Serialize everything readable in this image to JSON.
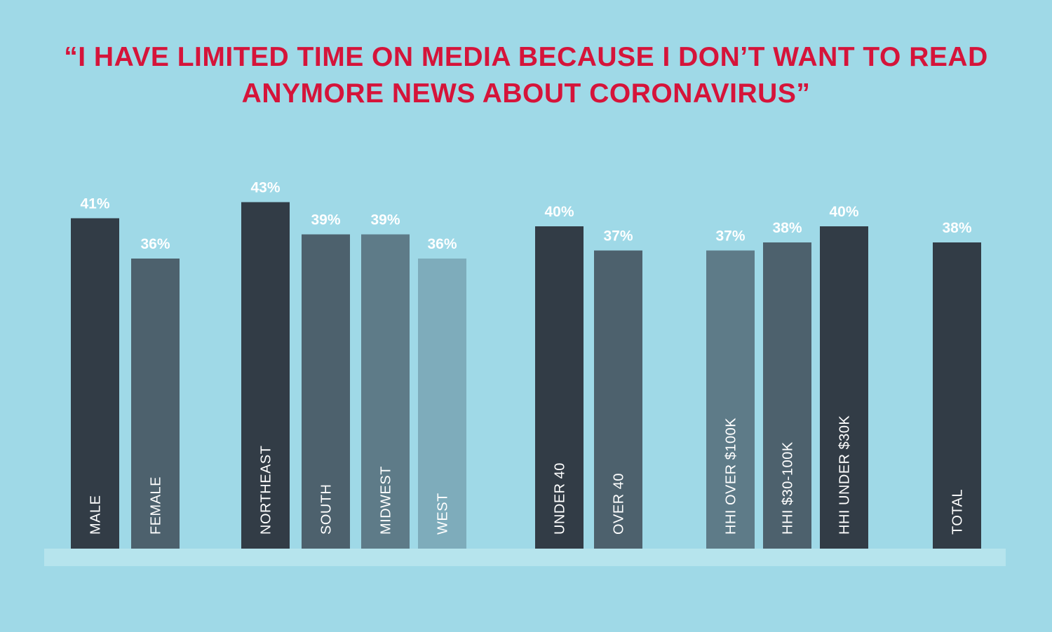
{
  "chart_data": {
    "type": "bar",
    "title": "“I HAVE LIMITED TIME ON MEDIA BECAUSE I DON’T WANT TO READ ANYMORE NEWS ABOUT CORONAVIRUS”",
    "value_suffix": "%",
    "ylim": [
      0,
      50
    ],
    "grid": false,
    "legend": "none",
    "bars": [
      {
        "category": "MALE",
        "value": 41,
        "value_label": "41%",
        "color": "#323c46"
      },
      {
        "category": "FEMALE",
        "value": 36,
        "value_label": "36%",
        "color": "#4d616d"
      },
      {
        "category": "NORTHEAST",
        "value": 43,
        "value_label": "43%",
        "color": "#323c46"
      },
      {
        "category": "SOUTH",
        "value": 39,
        "value_label": "39%",
        "color": "#4d616d"
      },
      {
        "category": "MIDWEST",
        "value": 39,
        "value_label": "39%",
        "color": "#5e7b88"
      },
      {
        "category": "WEST",
        "value": 36,
        "value_label": "36%",
        "color": "#7eacbb"
      },
      {
        "category": "UNDER 40",
        "value": 40,
        "value_label": "40%",
        "color": "#323c46"
      },
      {
        "category": "OVER 40",
        "value": 37,
        "value_label": "37%",
        "color": "#4d616d"
      },
      {
        "category": "HHI OVER $100K",
        "value": 37,
        "value_label": "37%",
        "color": "#5e7b88"
      },
      {
        "category": "HHI $30-100K",
        "value": 38,
        "value_label": "38%",
        "color": "#4d616d"
      },
      {
        "category": "HHI UNDER $30K",
        "value": 40,
        "value_label": "40%",
        "color": "#323c46"
      },
      {
        "category": "TOTAL",
        "value": 38,
        "value_label": "38%",
        "color": "#323c46"
      }
    ]
  },
  "colors": {
    "background": "#9fd9e7",
    "title": "#d5143a",
    "baseline": "#b6e4ed",
    "label_text": "#ffffff"
  }
}
